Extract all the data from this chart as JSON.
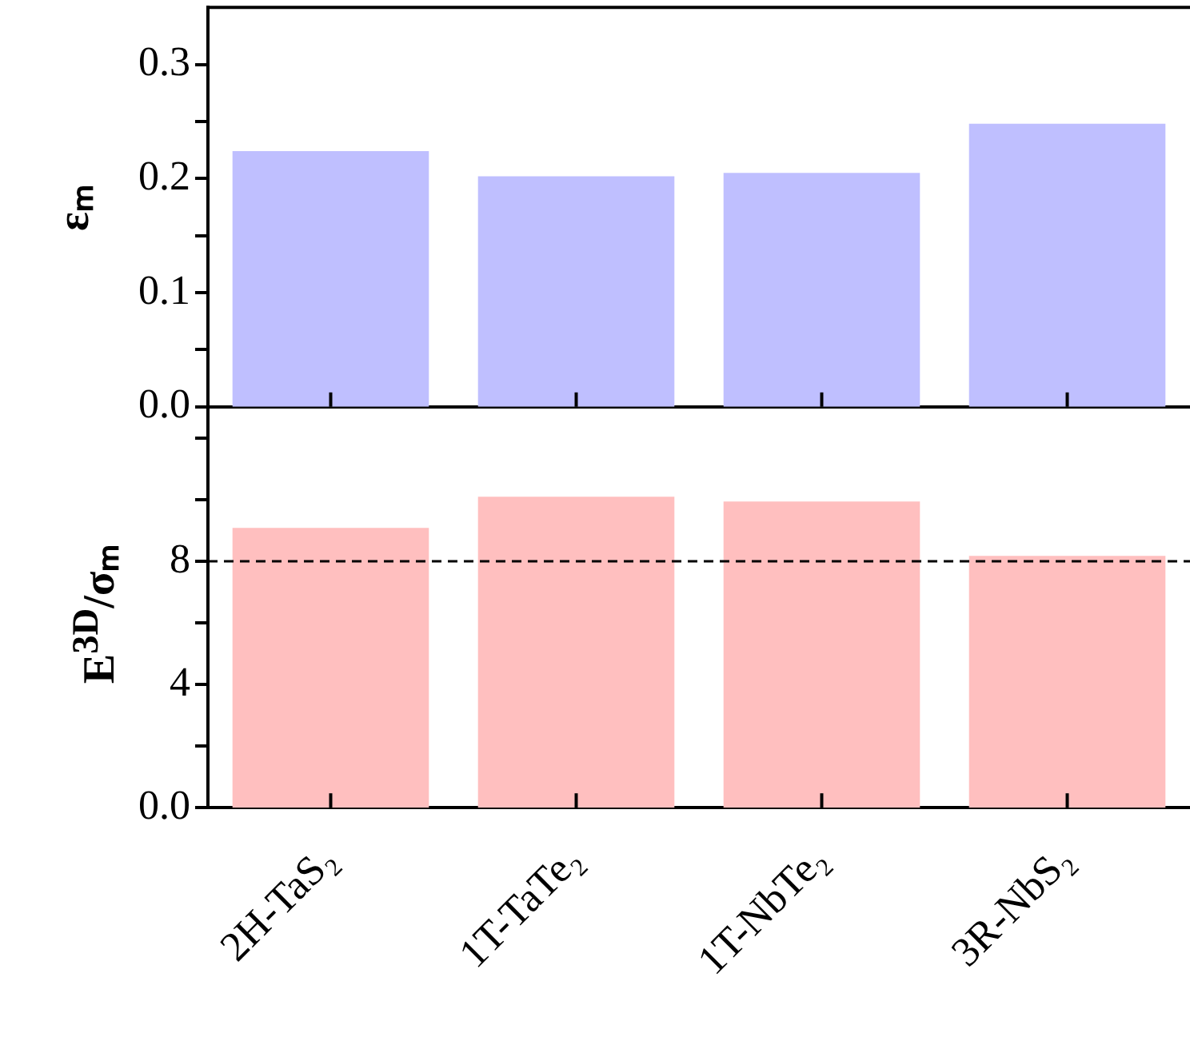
{
  "chart_data": [
    {
      "type": "bar",
      "ylabel": "εₘ",
      "categories": [
        null,
        null,
        null,
        null
      ],
      "values": [
        0.224,
        0.202,
        0.205,
        0.248
      ],
      "color": "#bfbfff",
      "ylim": [
        0,
        0.35
      ],
      "yticks": [
        {
          "value": 0,
          "label": "0.0"
        },
        {
          "value": 0.05,
          "label": null
        },
        {
          "value": 0.1,
          "label": "0.1"
        },
        {
          "value": 0.15,
          "label": null
        },
        {
          "value": 0.2,
          "label": "0.2"
        },
        {
          "value": 0.25,
          "label": null
        },
        {
          "value": 0.3,
          "label": "0.3"
        }
      ],
      "tick_labels": "y",
      "grid": false,
      "legend": false
    },
    {
      "type": "bar",
      "ylabel": "E$^{3D}$/σₘ",
      "categories": [
        "2H-TaS₂",
        "1T-TaTe₂",
        "1T-NbTe₂",
        "3R-NbS₂"
      ],
      "values": [
        9.08,
        10.09,
        9.94,
        8.17
      ],
      "color": "#ffbfbf",
      "ylim": [
        0,
        13
      ],
      "yticks": [
        {
          "value": 0,
          "label": "0.0"
        },
        {
          "value": 2,
          "label": null
        },
        {
          "value": 4,
          "label": "4"
        },
        {
          "value": 6,
          "label": null
        },
        {
          "value": 8,
          "label": "8"
        },
        {
          "value": 10,
          "label": null
        },
        {
          "value": 12,
          "label": null
        }
      ],
      "ref_lines": [
        {
          "axis": "y",
          "value": 8,
          "color": "#000000",
          "line_style": "dashed"
        }
      ],
      "grid": false,
      "legend": false
    }
  ]
}
